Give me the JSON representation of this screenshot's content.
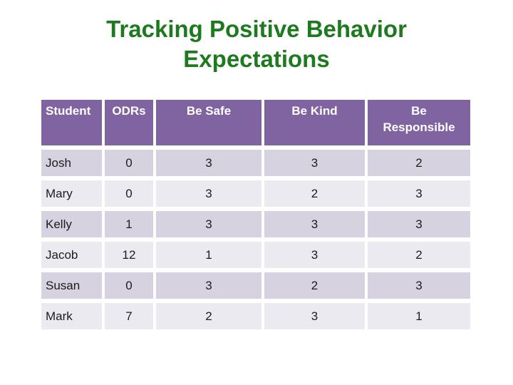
{
  "title": {
    "line1": "Tracking Positive Behavior",
    "line2": "Expectations"
  },
  "table": {
    "headers": [
      "Student",
      "ODRs",
      "Be Safe",
      "Be Kind",
      "Be\nResponsible"
    ],
    "rows": [
      [
        "Josh",
        "0",
        "3",
        "3",
        "2"
      ],
      [
        "Mary",
        "0",
        "3",
        "2",
        "3"
      ],
      [
        "Kelly",
        "1",
        "3",
        "3",
        "3"
      ],
      [
        "Jacob",
        "12",
        "1",
        "3",
        "2"
      ],
      [
        "Susan",
        "0",
        "3",
        "2",
        "3"
      ],
      [
        "Mark",
        "7",
        "2",
        "3",
        "1"
      ]
    ]
  },
  "colors": {
    "title_green": "#1D7A1E",
    "header_purple": "#8064A2",
    "row_band_dark": "#D6D2E0",
    "row_band_light": "#ECEAF1",
    "header_text": "#FFFFFF",
    "body_text": "#1C1C1C"
  }
}
